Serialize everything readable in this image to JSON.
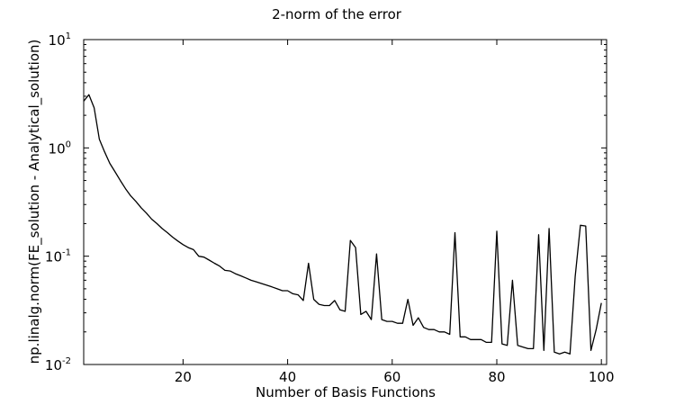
{
  "chart_data": {
    "type": "line",
    "title": "2-norm of the error",
    "xlabel": "Number of Basis Functions",
    "ylabel": "np.linalg.norm(FE_solution - Analytical_solution)",
    "xlim": [
      1,
      101
    ],
    "ylim": [
      0.01,
      10
    ],
    "yscale": "log",
    "xticks": [
      20,
      40,
      60,
      80,
      100
    ],
    "yticks": [
      {
        "value": 0.01,
        "base": "10",
        "exp": "-2"
      },
      {
        "value": 0.1,
        "base": "10",
        "exp": "-1"
      },
      {
        "value": 1,
        "base": "10",
        "exp": "0"
      },
      {
        "value": 10,
        "base": "10",
        "exp": "1"
      }
    ],
    "grid": false,
    "line_color": "#000000",
    "series": [
      {
        "x": [
          1,
          2,
          3,
          4,
          5,
          6,
          7,
          8,
          9,
          10,
          11,
          12,
          13,
          14,
          15,
          16,
          17,
          18,
          19,
          20,
          21,
          22,
          23,
          24,
          25,
          26,
          27,
          28,
          29,
          30,
          31,
          32,
          33,
          34,
          35,
          36,
          37,
          38,
          39,
          40,
          41,
          42,
          43,
          44,
          45,
          46,
          47,
          48,
          49,
          50,
          51,
          52,
          53,
          54,
          55,
          56,
          57,
          58,
          59,
          60,
          61,
          62,
          63,
          64,
          65,
          66,
          67,
          68,
          69,
          70,
          71,
          72,
          73,
          74,
          75,
          76,
          77,
          78,
          79,
          80,
          81,
          82,
          83,
          84,
          85,
          86,
          87,
          88,
          89,
          90,
          91,
          92,
          93,
          94,
          95,
          96,
          97,
          98,
          99,
          100
        ],
        "values": [
          2.7,
          3.1,
          2.35,
          1.2,
          0.92,
          0.72,
          0.6,
          0.5,
          0.42,
          0.36,
          0.32,
          0.28,
          0.25,
          0.22,
          0.2,
          0.18,
          0.165,
          0.15,
          0.138,
          0.128,
          0.12,
          0.115,
          0.1,
          0.098,
          0.092,
          0.086,
          0.081,
          0.074,
          0.073,
          0.069,
          0.066,
          0.063,
          0.06,
          0.058,
          0.056,
          0.054,
          0.052,
          0.05,
          0.048,
          0.048,
          0.045,
          0.044,
          0.039,
          0.086,
          0.04,
          0.036,
          0.035,
          0.035,
          0.039,
          0.032,
          0.031,
          0.14,
          0.12,
          0.029,
          0.031,
          0.026,
          0.105,
          0.026,
          0.025,
          0.025,
          0.024,
          0.024,
          0.04,
          0.023,
          0.027,
          0.022,
          0.021,
          0.021,
          0.02,
          0.02,
          0.019,
          0.165,
          0.018,
          0.018,
          0.017,
          0.017,
          0.017,
          0.016,
          0.016,
          0.17,
          0.0155,
          0.015,
          0.06,
          0.015,
          0.0145,
          0.014,
          0.014,
          0.158,
          0.0135,
          0.18,
          0.013,
          0.0125,
          0.013,
          0.0125,
          0.065,
          0.193,
          0.19,
          0.0135,
          0.021,
          0.037
        ]
      }
    ]
  }
}
